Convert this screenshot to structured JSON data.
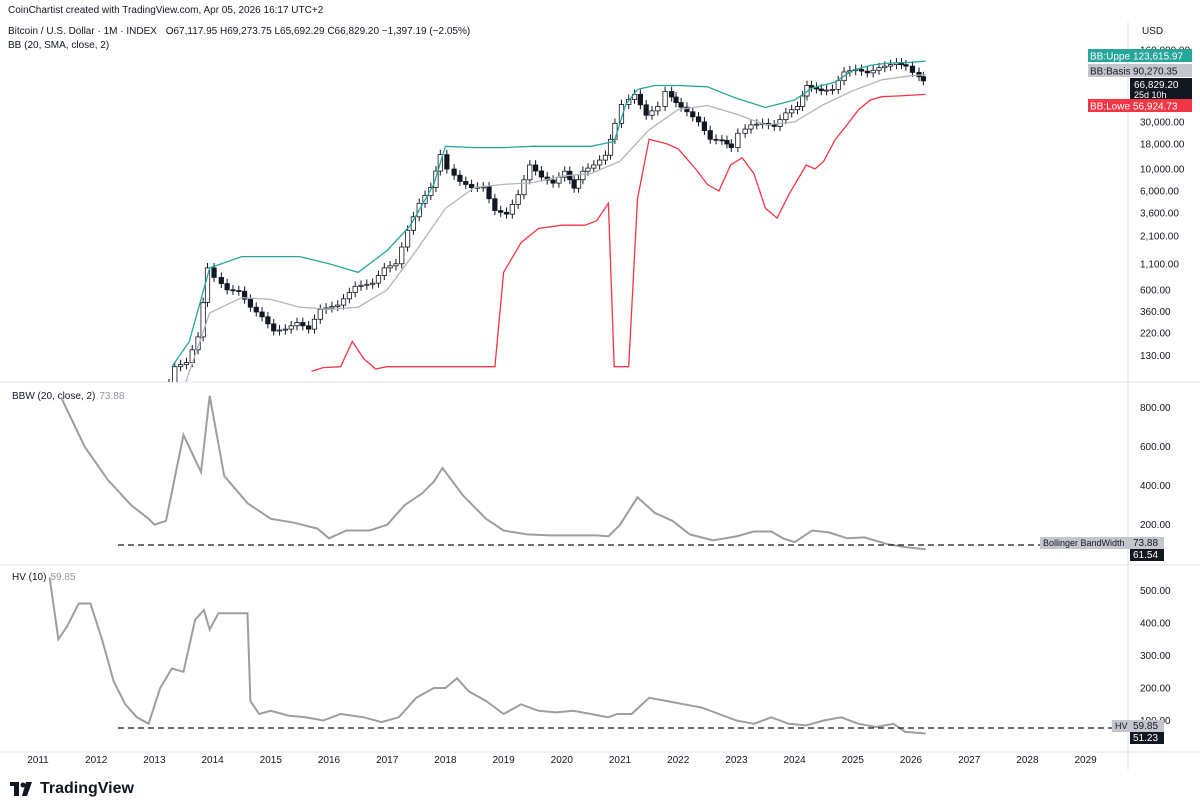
{
  "header": {
    "credit": "CoinChartist created with TradingView.com, Apr 05, 2026 16:17 UTC+2",
    "symbol": "Bitcoin / U.S. Dollar · 1M · INDEX",
    "ohlc": "O67,117.95  H69,273.75  L65,692.29  C66,829.20  −1,397.19 (−2.05%)",
    "bb_indicator": "BB (20, SMA, close, 2)",
    "currency": "USD"
  },
  "indicators": {
    "bbw_label": "BBW (20, close, 2)",
    "bbw_value": "73.88",
    "hv_label": "HV (10)",
    "hv_value": "59.85"
  },
  "badges": {
    "bb_upper_label": "BB:Upper",
    "bb_upper_value": "123,615.97",
    "bb_basis_label": "BB:Basis",
    "bb_basis_value": "90,270.35",
    "price_value": "66,829.20",
    "countdown": "25d 10h",
    "bb_lower_label": "BB:Lower",
    "bb_lower_value": "56,924.73",
    "bbw_badge_label": "Bollinger BandWidth",
    "bbw_badge_value": "73.88",
    "bbw_level": "61.54",
    "hv_badge_label": "HV",
    "hv_badge_value": "59.85",
    "hv_level": "51.23"
  },
  "footer": {
    "brand": "TradingView"
  },
  "colors": {
    "upper": "#26a69a",
    "basis": "#b2b5be",
    "lower": "#f23645",
    "indicator": "#9e9e9e",
    "candle_up": "#ffffff",
    "candle_down": "#131722"
  },
  "chart_data": [
    {
      "type": "line",
      "pane": "price",
      "title": "Bitcoin / U.S. Dollar · 1M · INDEX",
      "yscale": "log",
      "ylim": [
        70,
        180000
      ],
      "xlim": [
        2011,
        2030
      ],
      "y_ticks": [
        130,
        220,
        360,
        600,
        1100,
        2100,
        3600,
        6000,
        10000,
        18000,
        30000,
        160000
      ],
      "y_tick_labels": [
        "130.00",
        "220.00",
        "360.00",
        "600.00",
        "1,100.00",
        "2,100.00",
        "3,600.00",
        "6,000.00",
        "10,000.00",
        "18,000.00",
        "30,000.00",
        "160,000.00"
      ],
      "x_ticks": [
        "2011",
        "2012",
        "2013",
        "2014",
        "2015",
        "2016",
        "2017",
        "2018",
        "2019",
        "2020",
        "2021",
        "2022",
        "2023",
        "2024",
        "2025",
        "2026",
        "2027",
        "2028",
        "2029"
      ],
      "price_x": [
        2013.0,
        2013.2,
        2013.4,
        2013.6,
        2013.8,
        2013.95,
        2014.1,
        2014.3,
        2014.5,
        2014.7,
        2014.9,
        2015.1,
        2015.3,
        2015.5,
        2015.7,
        2015.9,
        2016.2,
        2016.5,
        2016.8,
        2017.0,
        2017.2,
        2017.4,
        2017.6,
        2017.8,
        2017.95,
        2018.1,
        2018.3,
        2018.5,
        2018.7,
        2018.9,
        2019.1,
        2019.3,
        2019.5,
        2019.7,
        2019.9,
        2020.1,
        2020.25,
        2020.4,
        2020.6,
        2020.8,
        2020.95,
        2021.1,
        2021.3,
        2021.5,
        2021.7,
        2021.85,
        2022.0,
        2022.2,
        2022.4,
        2022.6,
        2022.8,
        2022.95,
        2023.1,
        2023.3,
        2023.5,
        2023.7,
        2023.9,
        2024.1,
        2024.25,
        2024.5,
        2024.7,
        2024.9,
        2025.1,
        2025.3,
        2025.5,
        2025.7,
        2025.8,
        2025.95,
        2026.1,
        2026.25
      ],
      "price_y": [
        20,
        45,
        100,
        110,
        200,
        1000,
        800,
        600,
        580,
        400,
        320,
        230,
        240,
        280,
        240,
        380,
        420,
        650,
        700,
        1000,
        1100,
        2400,
        4500,
        6500,
        14000,
        10000,
        7500,
        6500,
        6600,
        3800,
        3500,
        5500,
        11000,
        8300,
        7200,
        9500,
        6400,
        9500,
        11000,
        13800,
        29000,
        45000,
        57000,
        35000,
        43000,
        61000,
        47000,
        38000,
        30000,
        20000,
        19500,
        16500,
        23000,
        28000,
        29000,
        27000,
        37000,
        43000,
        70000,
        62000,
        64000,
        96000,
        102000,
        94000,
        106000,
        114000,
        118000,
        110000,
        95000,
        78000
      ],
      "series": [
        {
          "name": "BB:Upper",
          "color": "#26a69a",
          "x": [
            2013.3,
            2013.6,
            2013.95,
            2014.5,
            2015.0,
            2015.5,
            2016.0,
            2016.5,
            2017.0,
            2017.4,
            2017.8,
            2018.0,
            2018.5,
            2019.0,
            2019.5,
            2020.0,
            2020.5,
            2020.9,
            2021.1,
            2021.3,
            2021.6,
            2022.0,
            2022.5,
            2023.0,
            2023.5,
            2024.0,
            2024.3,
            2024.7,
            2025.0,
            2025.3,
            2025.6,
            2026.0,
            2026.25
          ],
          "y": [
            100,
            180,
            1000,
            1300,
            1300,
            1300,
            1100,
            900,
            1500,
            2700,
            7000,
            17000,
            16500,
            16500,
            17000,
            17000,
            17000,
            19000,
            45000,
            64000,
            70000,
            70000,
            68000,
            52000,
            42000,
            50000,
            66000,
            76000,
            100000,
            112000,
            118000,
            120000,
            123616
          ]
        },
        {
          "name": "BB:Basis",
          "color": "#b2b5be",
          "x": [
            2013.5,
            2013.95,
            2014.5,
            2015.0,
            2015.5,
            2016.0,
            2016.5,
            2017.0,
            2017.5,
            2018.0,
            2018.5,
            2019.0,
            2019.5,
            2020.0,
            2020.5,
            2021.0,
            2021.5,
            2022.0,
            2022.5,
            2023.0,
            2023.5,
            2024.0,
            2024.5,
            2025.0,
            2025.5,
            2026.0,
            2026.25
          ],
          "y": [
            60,
            350,
            500,
            480,
            400,
            380,
            400,
            600,
            1500,
            4000,
            6500,
            7000,
            7300,
            8500,
            9000,
            12000,
            25000,
            40000,
            44000,
            36000,
            28000,
            30000,
            45000,
            62000,
            80000,
            88000,
            90270
          ]
        },
        {
          "name": "BB:Lower",
          "color": "#f23645",
          "x": [
            2015.7,
            2015.9,
            2016.2,
            2016.4,
            2016.6,
            2016.8,
            2017.0,
            2018.85,
            2019.0,
            2019.3,
            2019.6,
            2020.0,
            2020.4,
            2020.6,
            2020.8,
            2020.9,
            2021.15,
            2021.3,
            2021.5,
            2021.8,
            2022.0,
            2022.3,
            2022.5,
            2022.7,
            2022.9,
            2023.1,
            2023.3,
            2023.5,
            2023.7,
            2023.9,
            2024.2,
            2024.35,
            2024.5,
            2024.7,
            2024.9,
            2025.1,
            2025.3,
            2025.5,
            2025.8,
            2026.25
          ],
          "y": [
            90,
            98,
            100,
            180,
            120,
            95,
            100,
            100,
            900,
            1800,
            2500,
            2700,
            2700,
            3000,
            4500,
            100,
            100,
            5000,
            20000,
            18000,
            16000,
            10000,
            7000,
            6000,
            11000,
            13000,
            9000,
            4000,
            3200,
            5500,
            11000,
            10000,
            12000,
            20000,
            28000,
            40000,
            50000,
            54000,
            55000,
            56925
          ]
        }
      ]
    },
    {
      "type": "line",
      "pane": "bbw",
      "title": "BBW (20, close, 2)",
      "ylim": [
        60,
        900
      ],
      "y_ticks": [
        200,
        400,
        600,
        800
      ],
      "y_tick_labels": [
        "200.00",
        "400.00",
        "600.00",
        "800.00"
      ],
      "reference_level": 61.54,
      "series": [
        {
          "name": "Bollinger BandWidth",
          "color": "#9e9e9e",
          "x": [
            2011.4,
            2011.8,
            2012.2,
            2012.6,
            2012.9,
            2013.0,
            2013.2,
            2013.5,
            2013.8,
            2013.95,
            2014.2,
            2014.6,
            2015.0,
            2015.4,
            2015.8,
            2016.0,
            2016.3,
            2016.7,
            2017.0,
            2017.3,
            2017.6,
            2017.8,
            2017.95,
            2018.3,
            2018.7,
            2019.0,
            2019.4,
            2019.8,
            2020.2,
            2020.6,
            2020.8,
            2021.0,
            2021.3,
            2021.6,
            2021.9,
            2022.2,
            2022.6,
            2023.0,
            2023.3,
            2023.6,
            2023.8,
            2024.0,
            2024.3,
            2024.6,
            2024.9,
            2025.2,
            2025.6,
            2025.9,
            2026.25
          ],
          "y": [
            850,
            600,
            430,
            300,
            230,
            200,
            220,
            660,
            470,
            860,
            450,
            310,
            230,
            210,
            180,
            130,
            170,
            170,
            200,
            300,
            360,
            420,
            490,
            350,
            230,
            170,
            150,
            145,
            145,
            145,
            140,
            200,
            340,
            260,
            220,
            150,
            120,
            140,
            165,
            165,
            130,
            110,
            170,
            160,
            130,
            135,
            100,
            85,
            73.88
          ]
        }
      ]
    },
    {
      "type": "line",
      "pane": "hv",
      "title": "HV (10)",
      "ylim": [
        40,
        560
      ],
      "y_ticks": [
        100,
        200,
        300,
        400,
        500
      ],
      "y_tick_labels": [
        "100.00",
        "200.00",
        "300.00",
        "400.00",
        "500.00"
      ],
      "reference_level": 51.23,
      "series": [
        {
          "name": "HV",
          "color": "#9e9e9e",
          "x": [
            2011.2,
            2011.35,
            2011.5,
            2011.7,
            2011.9,
            2012.1,
            2012.3,
            2012.5,
            2012.7,
            2012.9,
            2013.1,
            2013.3,
            2013.5,
            2013.7,
            2013.85,
            2013.95,
            2014.1,
            2014.3,
            2014.6,
            2014.65,
            2014.8,
            2015.0,
            2015.3,
            2015.6,
            2015.9,
            2016.2,
            2016.6,
            2016.9,
            2017.2,
            2017.5,
            2017.8,
            2018.0,
            2018.2,
            2018.4,
            2018.7,
            2019.0,
            2019.3,
            2019.6,
            2019.9,
            2020.2,
            2020.5,
            2020.8,
            2020.95,
            2021.2,
            2021.5,
            2021.8,
            2022.1,
            2022.4,
            2022.7,
            2023.0,
            2023.3,
            2023.6,
            2023.9,
            2024.2,
            2024.5,
            2024.8,
            2025.1,
            2025.4,
            2025.7,
            2025.9,
            2026.25
          ],
          "y": [
            540,
            350,
            390,
            460,
            460,
            350,
            220,
            150,
            110,
            90,
            200,
            260,
            250,
            410,
            440,
            380,
            430,
            430,
            430,
            160,
            120,
            130,
            115,
            110,
            100,
            120,
            110,
            95,
            110,
            170,
            200,
            200,
            230,
            190,
            160,
            120,
            150,
            130,
            125,
            130,
            120,
            110,
            120,
            120,
            170,
            160,
            150,
            140,
            120,
            100,
            90,
            110,
            90,
            85,
            100,
            110,
            90,
            80,
            90,
            65,
            59.85
          ]
        }
      ]
    }
  ]
}
